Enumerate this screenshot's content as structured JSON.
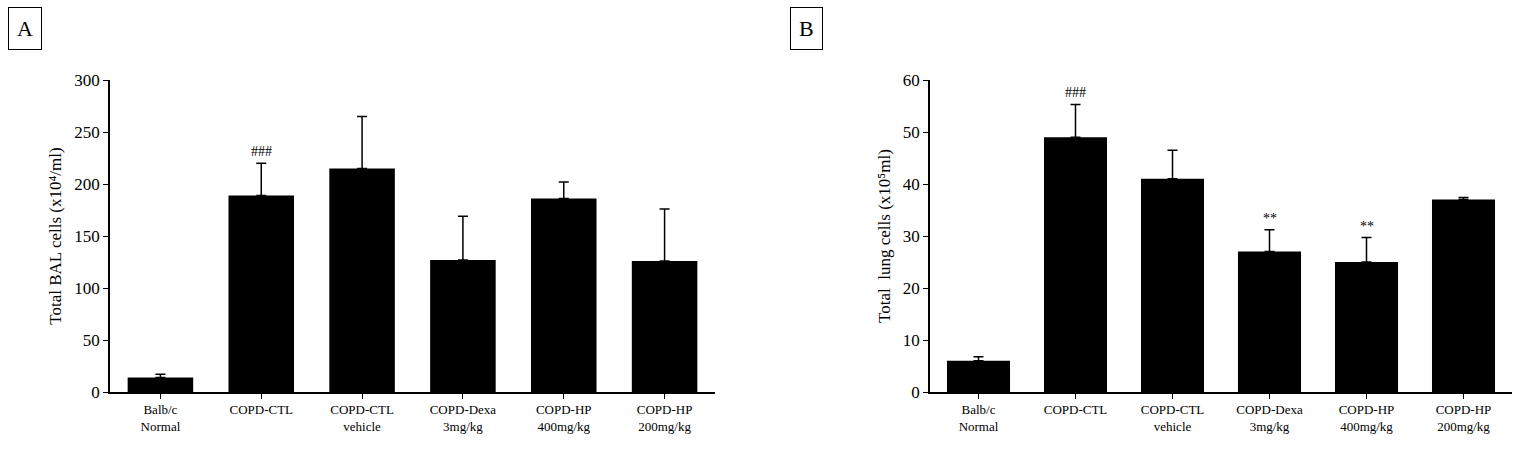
{
  "chart_data": [
    {
      "type": "bar",
      "panel_label": "A",
      "y_label": "Total BAL cells (x10⁴/ml)",
      "categories": [
        "Balb/c\nNormal",
        "COPD-CTL",
        "COPD-CTL\nvehicle",
        "COPD-Dexa\n3mg/kg",
        "COPD-HP\n400mg/kg",
        "COPD-HP\n200mg/kg"
      ],
      "values": [
        14,
        189,
        215,
        127,
        186,
        126
      ],
      "errors": [
        3,
        31,
        50,
        42,
        16,
        50
      ],
      "color": "#000000",
      "ylim": [
        0,
        300
      ],
      "yticks": [
        0,
        50,
        100,
        150,
        200,
        250,
        300
      ],
      "grid": false,
      "annotations": [
        {
          "text": "###",
          "category": 1
        }
      ]
    },
    {
      "type": "bar",
      "panel_label": "B",
      "y_label": "Total  lung cells (x10⁵ml)",
      "categories": [
        "Balb/c\nNormal",
        "COPD-CTL",
        "COPD-CTL\nvehicle",
        "COPD-Dexa\n3mg/kg",
        "COPD-HP\n400mg/kg",
        "COPD-HP\n200mg/kg"
      ],
      "values": [
        6,
        49,
        41,
        27,
        25,
        37
      ],
      "errors": [
        0.8,
        6.3,
        5.5,
        4.2,
        4.7,
        0.4
      ],
      "color": "#000000",
      "ylim": [
        0,
        60
      ],
      "yticks": [
        0,
        10,
        20,
        30,
        40,
        50,
        60
      ],
      "grid": false,
      "annotations": [
        {
          "text": "###",
          "category": 1
        },
        {
          "text": "**",
          "category": 3
        },
        {
          "text": "**",
          "category": 4
        }
      ]
    }
  ]
}
